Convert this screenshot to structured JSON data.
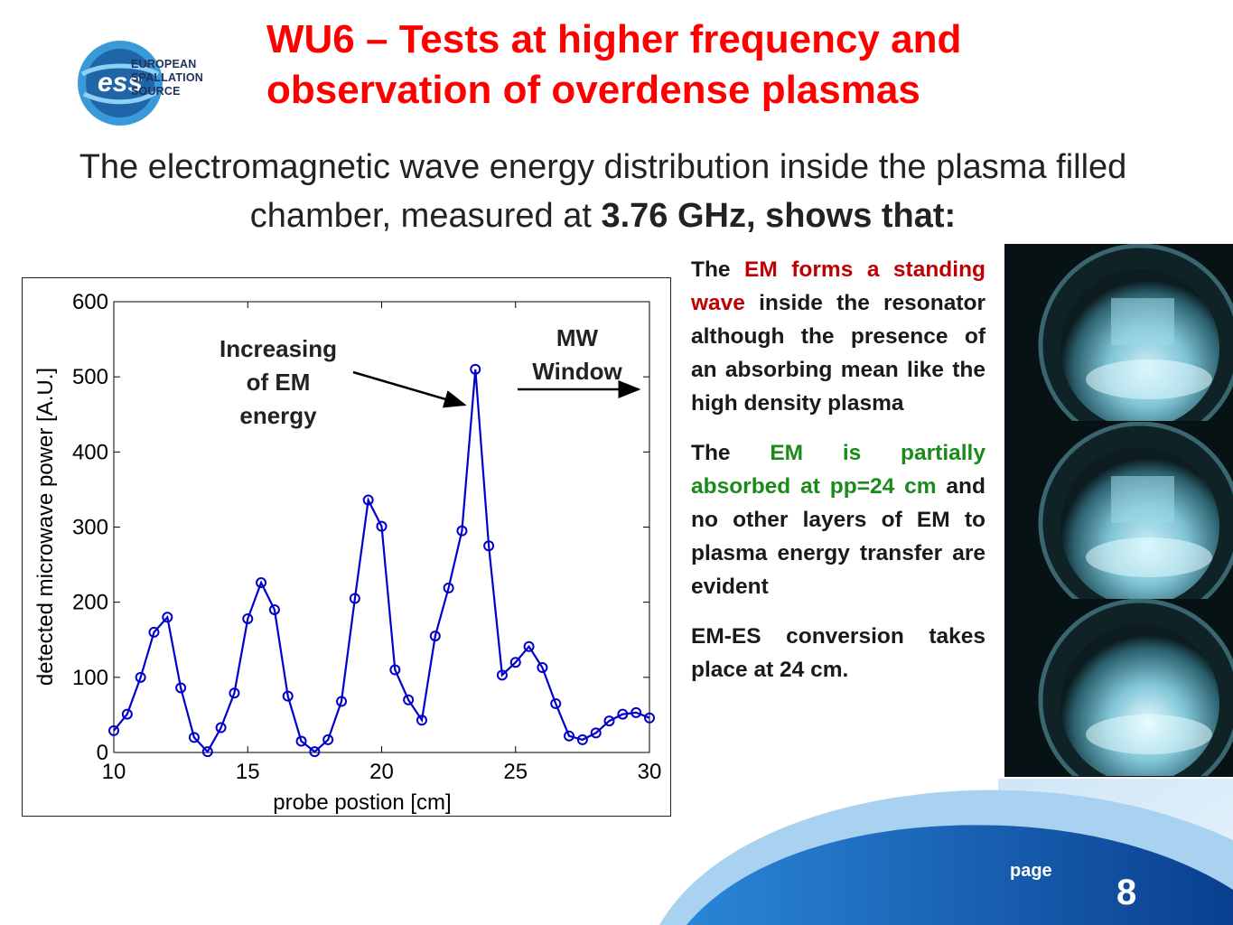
{
  "logo": {
    "mark": "ess",
    "lines": [
      "EUROPEAN",
      "SPALLATION",
      "SOURCE"
    ]
  },
  "title": {
    "line1": "WU6 – Tests at higher frequency and",
    "line2": "observation of overdense plasmas"
  },
  "subtitle": {
    "part1": "The electromagnetic wave energy distribution inside the plasma filled chamber, measured at ",
    "bold": "3.76 GHz, shows that:"
  },
  "chart_data": {
    "type": "line",
    "xlabel": "probe postion [cm]",
    "ylabel": "detected microwave power [A.U.]",
    "xlim": [
      10,
      30
    ],
    "ylim": [
      0,
      600
    ],
    "xticks": [
      10,
      15,
      20,
      25,
      30
    ],
    "yticks": [
      0,
      100,
      200,
      300,
      400,
      500,
      600
    ],
    "grid": false,
    "marker": "circle",
    "color": "#0000cc",
    "x": [
      10,
      10.5,
      11,
      11.5,
      12,
      12.5,
      13,
      13.5,
      14,
      14.5,
      15,
      15.5,
      16,
      16.5,
      17,
      17.5,
      18,
      18.5,
      19,
      19.5,
      20,
      20.5,
      21,
      21.5,
      22,
      22.5,
      23,
      23.5,
      24,
      24.5,
      25,
      25.5,
      26,
      26.5,
      27,
      27.5,
      28,
      28.5,
      29,
      29.5,
      30
    ],
    "y": [
      29,
      51,
      100,
      160,
      180,
      86,
      20,
      1,
      33,
      79,
      178,
      226,
      190,
      75,
      15,
      1,
      17,
      68,
      205,
      336,
      301,
      110,
      70,
      43,
      155,
      219,
      295,
      510,
      275,
      103,
      120,
      141,
      113,
      65,
      22,
      17,
      26,
      42,
      51,
      53,
      46
    ],
    "annotations": [
      {
        "text": [
          "Increasing",
          "of EM",
          "energy"
        ],
        "points_to": [
          23.5,
          470
        ]
      },
      {
        "text": [
          "MW",
          "Window"
        ],
        "points_to": [
          30,
          483
        ]
      }
    ]
  },
  "bullets": [
    {
      "parts": [
        {
          "text": "The ",
          "color": "default"
        },
        {
          "text": "EM forms a standing wave",
          "color": "red"
        },
        {
          "text": " inside the resonator although the presence of an absorbing mean like the high density plasma",
          "color": "default"
        }
      ]
    },
    {
      "parts": [
        {
          "text": "The ",
          "color": "default"
        },
        {
          "text": "EM is partially absorbed at pp=24 cm",
          "color": "green"
        },
        {
          "text": " and no other layers of EM to plasma energy transfer are evident",
          "color": "default"
        }
      ]
    },
    {
      "parts": [
        {
          "text": "EM-ES conversion takes place at 24 cm.",
          "color": "default"
        }
      ]
    }
  ],
  "photos": [
    "plasma-photo-1",
    "plasma-photo-2",
    "plasma-photo-3"
  ],
  "footer": {
    "page_label": "page",
    "page_number": "8"
  },
  "colors": {
    "title": "#ff0000",
    "accent_blue": "#1d6fc8",
    "logo_navy": "#21325b",
    "series": "#0000cc"
  }
}
